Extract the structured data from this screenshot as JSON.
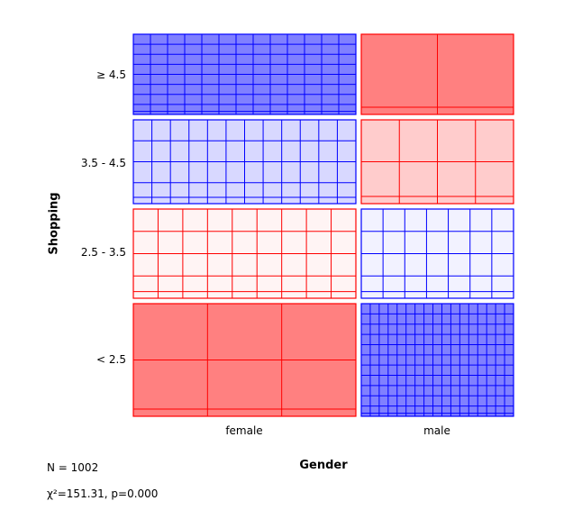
{
  "chart_data": {
    "type": "mosaic",
    "xlabel": "Gender",
    "ylabel": "Shopping",
    "x_categories": [
      "female",
      "male"
    ],
    "y_categories": [
      "≥ 4.5",
      "3.5 - 4.5",
      "2.5 - 3.5",
      "< 2.5"
    ],
    "cells": [
      {
        "gender": "female",
        "shopping": "≥ 4.5",
        "residual_sign": "positive",
        "grid_cols": 13,
        "grid_rows": 8
      },
      {
        "gender": "male",
        "shopping": "≥ 4.5",
        "residual_sign": "negative",
        "grid_cols": 2,
        "grid_rows": 1
      },
      {
        "gender": "female",
        "shopping": "3.5 - 4.5",
        "residual_sign": "positive",
        "grid_cols": 12,
        "grid_rows": 4
      },
      {
        "gender": "male",
        "shopping": "3.5 - 4.5",
        "residual_sign": "negative",
        "grid_cols": 4,
        "grid_rows": 2
      },
      {
        "gender": "female",
        "shopping": "2.5 - 3.5",
        "residual_sign": "negative",
        "grid_cols": 9,
        "grid_rows": 4
      },
      {
        "gender": "male",
        "shopping": "2.5 - 3.5",
        "residual_sign": "positive",
        "grid_cols": 7,
        "grid_rows": 4
      },
      {
        "gender": "female",
        "shopping": "< 2.5",
        "residual_sign": "negative",
        "grid_cols": 3,
        "grid_rows": 2
      },
      {
        "gender": "male",
        "shopping": "< 2.5",
        "residual_sign": "positive",
        "grid_cols": 17,
        "grid_rows": 11
      }
    ],
    "colors": {
      "positive_strong_fill": "#8080ff",
      "positive_mild_fill": "#d8d8ff",
      "positive_weak_fill": "#f2f2ff",
      "negative_strong_fill": "#ff8080",
      "negative_mild_fill": "#ffcccc",
      "negative_weak_fill": "#fff4f4",
      "positive_line": "#0000ff",
      "negative_line": "#ff0000"
    }
  },
  "stats": {
    "n_text": "N = 1002",
    "chi_text": "χ²=151.31, p=0.000"
  }
}
